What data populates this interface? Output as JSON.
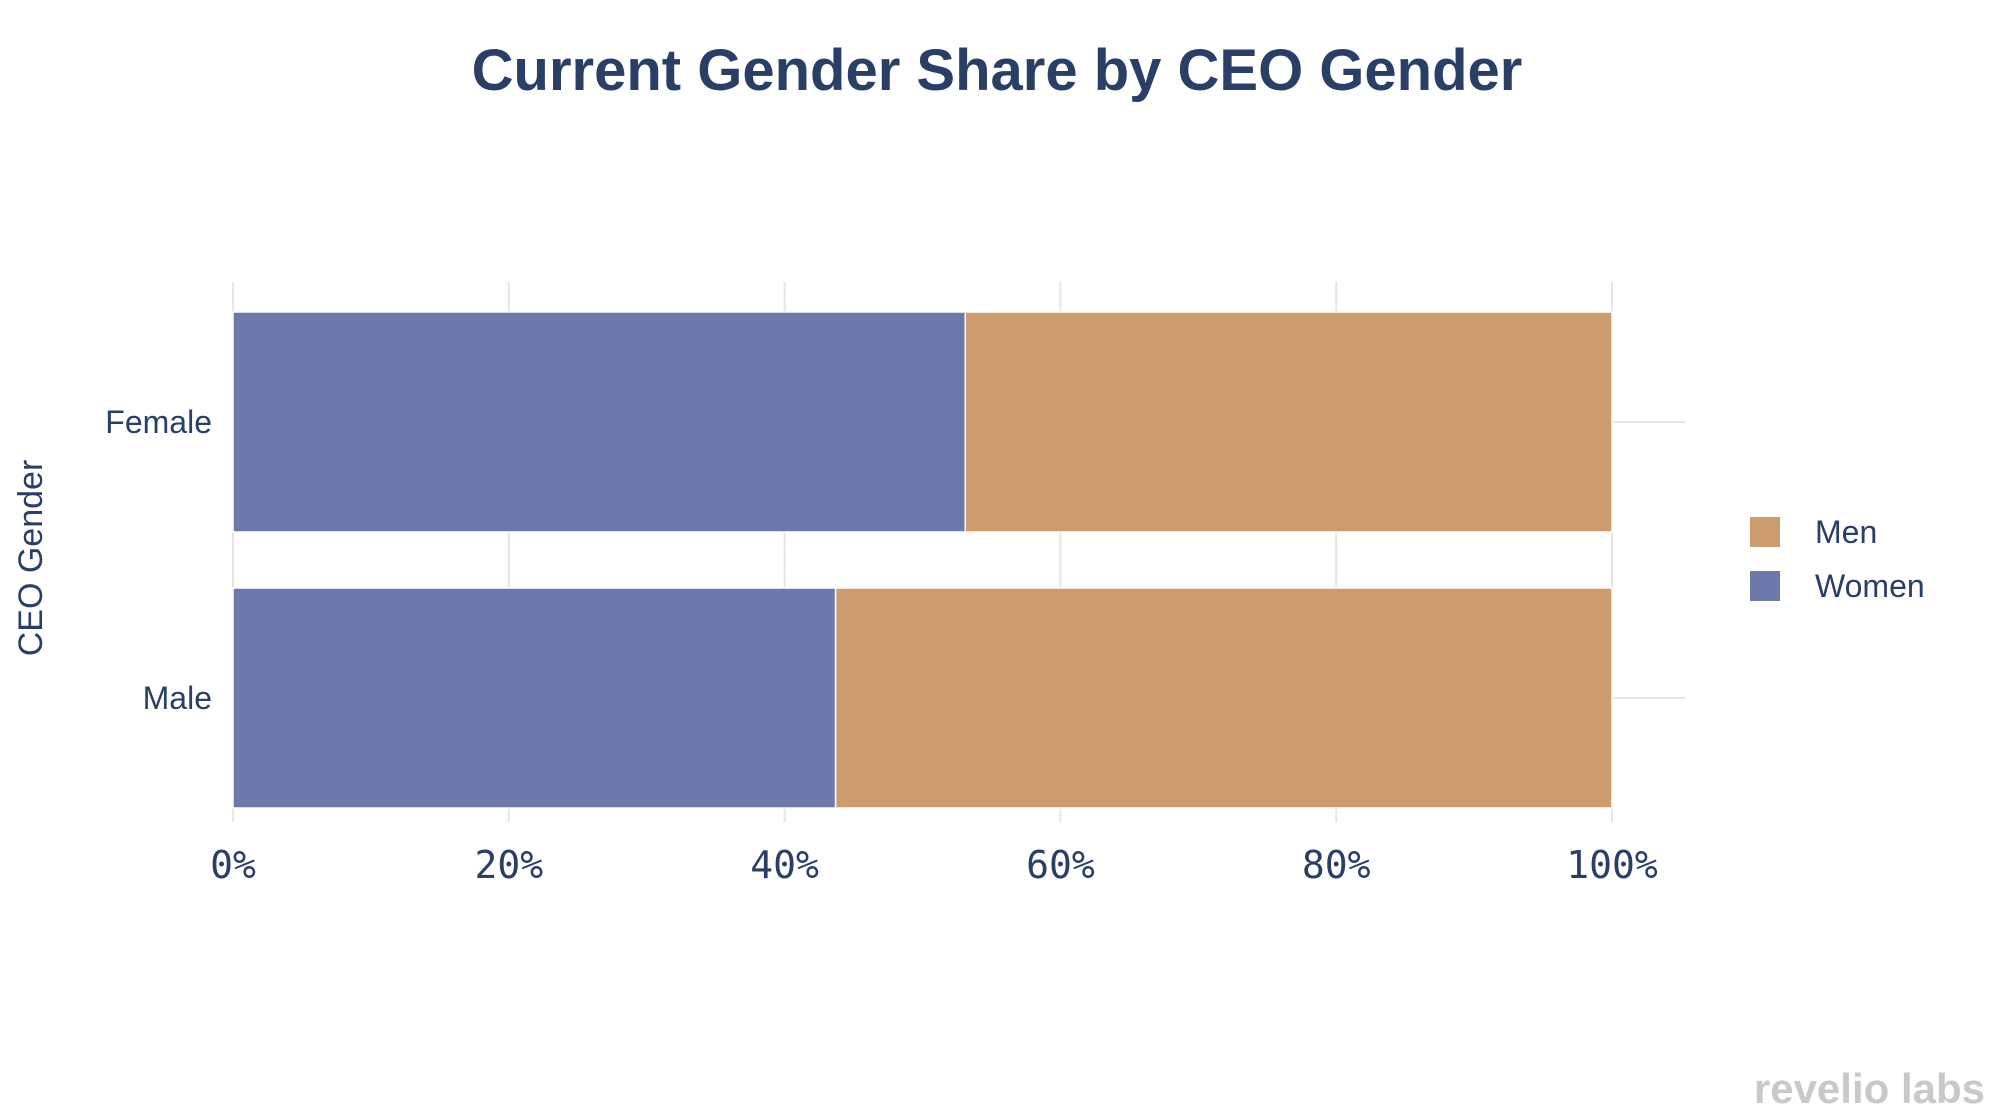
{
  "colors": {
    "men": "#cc9c6f",
    "women": "#6d79ab",
    "text": "#2a3f66",
    "grid": "#e6e6e6",
    "brand": "#c9c9c9"
  },
  "chart_data": {
    "type": "bar",
    "orientation": "horizontal",
    "stacked": true,
    "title": "Current Gender Share by CEO Gender",
    "xlabel": "",
    "ylabel": "CEO Gender",
    "xlim": [
      0,
      100
    ],
    "x_ticks": [
      0,
      20,
      40,
      60,
      80,
      100
    ],
    "x_tick_labels": [
      "0%",
      "20%",
      "40%",
      "60%",
      "80%",
      "100%"
    ],
    "grid": true,
    "legend_position": "right",
    "categories": [
      "Female",
      "Male"
    ],
    "series": [
      {
        "name": "Women",
        "values": [
          53.1,
          43.7
        ],
        "color_key": "women"
      },
      {
        "name": "Men",
        "values": [
          46.9,
          56.3
        ],
        "color_key": "men"
      }
    ],
    "legend": [
      {
        "name": "Men",
        "color_key": "men"
      },
      {
        "name": "Women",
        "color_key": "women"
      }
    ]
  },
  "brand": {
    "text": "revelio labs"
  }
}
